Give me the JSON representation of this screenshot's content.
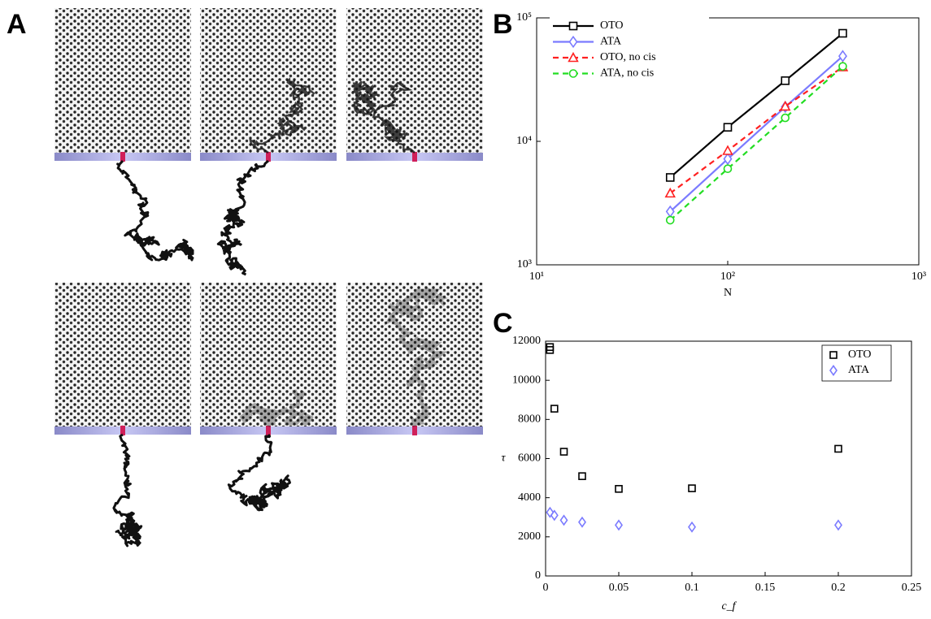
{
  "panel_labels": [
    "A",
    "B",
    "C"
  ],
  "chart_data": [
    {
      "type": "line",
      "log_x": true,
      "log_y": true,
      "x_label": "N",
      "x": [
        50,
        100,
        200,
        400
      ],
      "xlim": [
        10,
        1000
      ],
      "xticks": [
        {
          "value": 10,
          "label": "10¹"
        },
        {
          "value": 100,
          "label": "10²"
        },
        {
          "value": 1000,
          "label": "10³"
        }
      ],
      "ylim": [
        1000,
        100000
      ],
      "yticks": [
        {
          "value": 1000,
          "label": "10³"
        },
        {
          "value": 10000,
          "label": "10⁴"
        },
        {
          "value": 100000,
          "label": "10⁵"
        }
      ],
      "legend": "upper left",
      "series": [
        {
          "name": "OTO",
          "color": "#000000",
          "marker": "square",
          "dashed": false,
          "values": [
            5100,
            13000,
            31000,
            75000
          ]
        },
        {
          "name": "ATA",
          "color": "#7b7bff",
          "marker": "diamond",
          "dashed": false,
          "values": [
            2700,
            7200,
            19000,
            49000
          ]
        },
        {
          "name": "OTO, no cis",
          "color": "#ff2020",
          "marker": "triangle",
          "dashed": true,
          "values": [
            3800,
            8400,
            19200,
            40000
          ]
        },
        {
          "name": "ATA, no cis",
          "color": "#22dd22",
          "marker": "circle",
          "dashed": true,
          "values": [
            2300,
            6000,
            15500,
            40500
          ]
        }
      ]
    },
    {
      "type": "scatter",
      "x_label": "c_f",
      "y_label": "τ",
      "xlim": [
        0,
        0.25
      ],
      "xticks": [
        0,
        0.05,
        0.1,
        0.15,
        0.2,
        0.25
      ],
      "ylim": [
        0,
        12000
      ],
      "yticks": [
        0,
        2000,
        4000,
        6000,
        8000,
        10000,
        12000
      ],
      "legend": "upper right",
      "series": [
        {
          "name": "OTO",
          "color": "#000000",
          "marker": "square",
          "x": [
            0.003,
            0.003,
            0.006,
            0.0125,
            0.025,
            0.05,
            0.1,
            0.2
          ],
          "values": [
            11700,
            11550,
            8550,
            6350,
            5100,
            4450,
            4480,
            6500
          ]
        },
        {
          "name": "ATA",
          "color": "#7b7bff",
          "marker": "diamond",
          "x": [
            0.003,
            0.006,
            0.0125,
            0.025,
            0.05,
            0.1,
            0.2
          ],
          "values": [
            3250,
            3100,
            2850,
            2750,
            2600,
            2500,
            2600
          ]
        }
      ]
    }
  ]
}
